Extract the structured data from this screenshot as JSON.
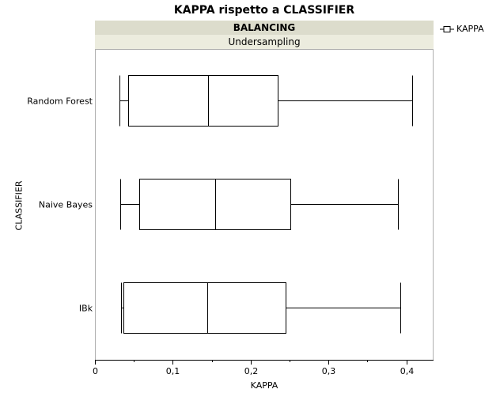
{
  "chart_data": {
    "type": "boxplot",
    "title": "KAPPA rispetto a CLASSIFIER",
    "group_header": "BALANCING",
    "group_value": "Undersampling",
    "xlabel": "KAPPA",
    "ylabel": "CLASSIFIER",
    "xlim": [
      0,
      0.435
    ],
    "x_ticks": [
      0,
      0.1,
      0.2,
      0.3,
      0.4
    ],
    "x_tick_labels": [
      "0",
      "0,1",
      "0,2",
      "0,3",
      "0,4"
    ],
    "legend": [
      "KAPPA"
    ],
    "legend_position": "top-right",
    "categories": [
      "Random Forest",
      "Naive Bayes",
      "IBk"
    ],
    "boxes": [
      {
        "category": "Random Forest",
        "min": 0.032,
        "q1": 0.043,
        "median": 0.145,
        "q3": 0.235,
        "max": 0.408
      },
      {
        "category": "Naive Bayes",
        "min": 0.033,
        "q1": 0.057,
        "median": 0.154,
        "q3": 0.251,
        "max": 0.389
      },
      {
        "category": "IBk",
        "min": 0.034,
        "q1": 0.037,
        "median": 0.144,
        "q3": 0.245,
        "max": 0.392
      }
    ]
  }
}
